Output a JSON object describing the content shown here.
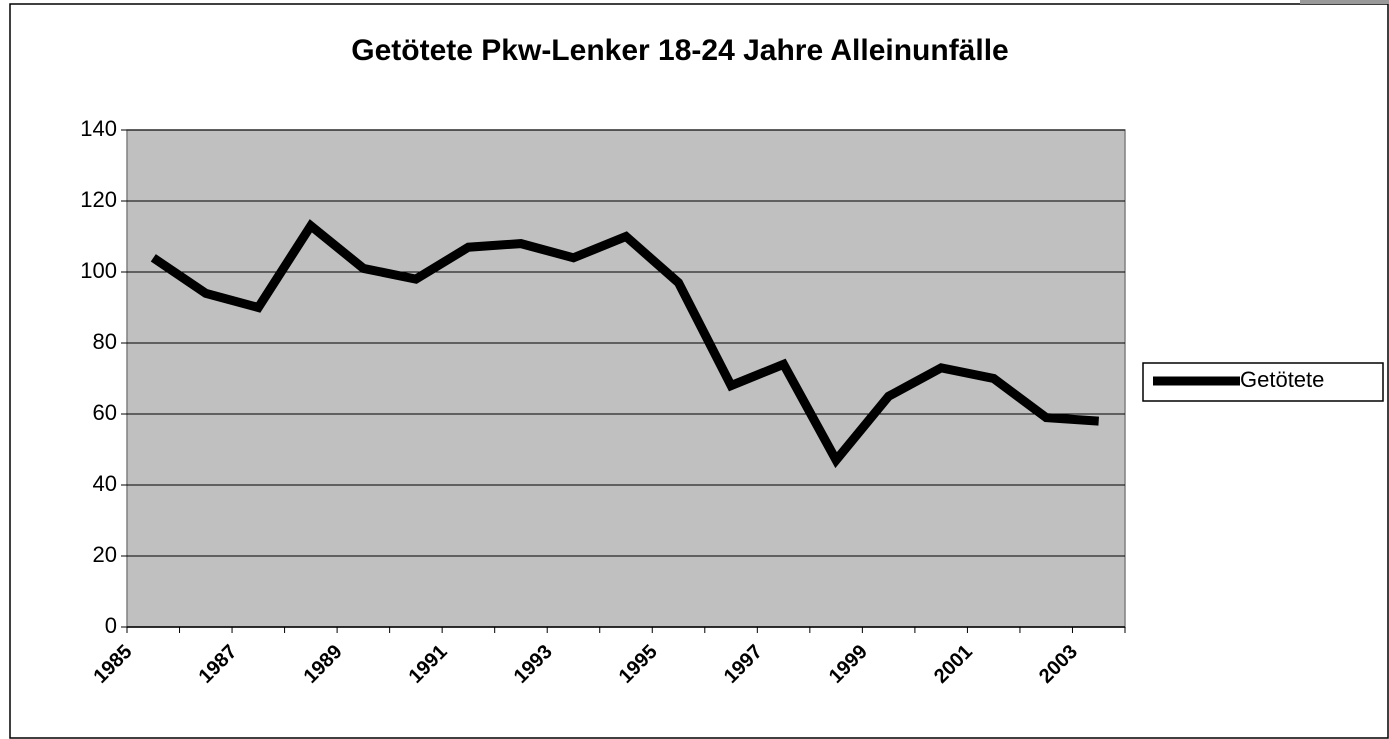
{
  "chart_data": {
    "type": "line",
    "title": "Getötete Pkw-Lenker 18-24 Jahre Alleinunfälle",
    "categories": [
      "1985",
      null,
      "1987",
      null,
      "1989",
      null,
      "1991",
      null,
      "1993",
      null,
      "1995",
      null,
      "1997",
      null,
      "1999",
      null,
      "2001",
      null,
      "2003"
    ],
    "series": [
      {
        "name": "Getötete",
        "color": "#000000",
        "values": [
          104,
          94,
          90,
          113,
          101,
          98,
          107,
          108,
          104,
          110,
          97,
          68,
          74,
          47,
          65,
          73,
          70,
          59,
          58
        ]
      }
    ],
    "ylim": [
      0,
      140
    ],
    "yticks": [
      0,
      20,
      40,
      60,
      80,
      100,
      120,
      140
    ],
    "grid": true,
    "legend": "right"
  }
}
